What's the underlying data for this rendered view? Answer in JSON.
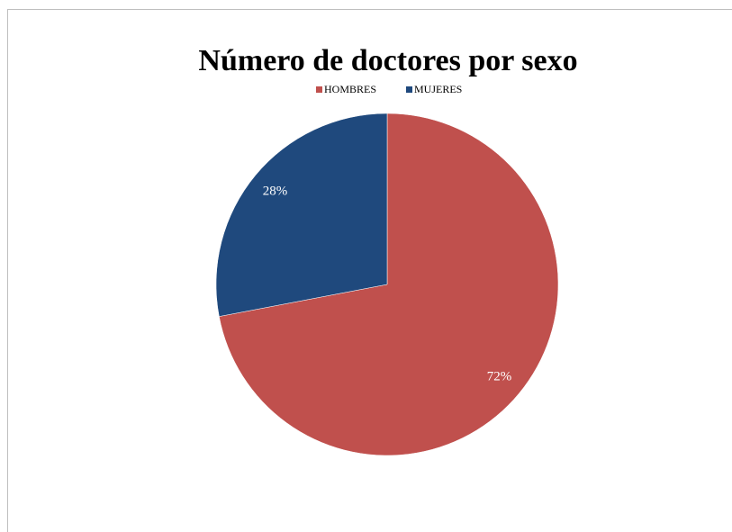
{
  "chart_data": {
    "type": "pie",
    "title": "Número de doctores por sexo",
    "categories": [
      "HOMBRES",
      "MUJERES"
    ],
    "values": [
      72,
      28
    ],
    "value_labels": [
      "72%",
      "28%"
    ],
    "colors": [
      "#c0504d",
      "#1f497d"
    ],
    "legend": "top"
  }
}
